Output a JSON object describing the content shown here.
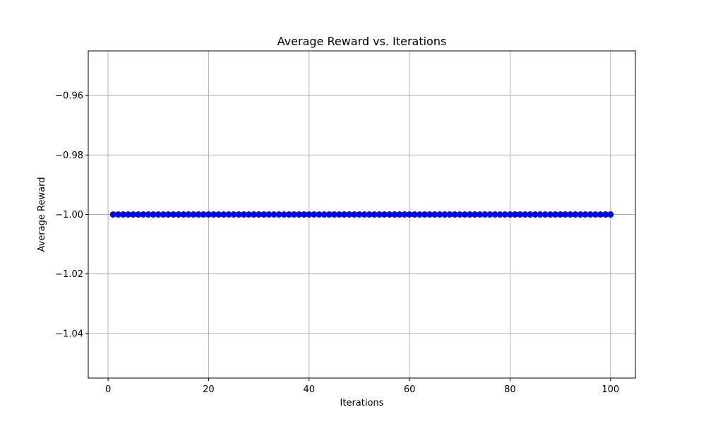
{
  "chart_data": {
    "type": "line",
    "title": "Average Reward vs. Iterations",
    "xlabel": "Iterations",
    "ylabel": "Average Reward",
    "xlim": [
      -3.95,
      104.95
    ],
    "ylim": [
      -1.055,
      -0.945
    ],
    "x_ticks": [
      0,
      20,
      40,
      60,
      80,
      100
    ],
    "x_tick_labels": [
      "0",
      "20",
      "40",
      "60",
      "80",
      "100"
    ],
    "y_ticks": [
      -1.04,
      -1.02,
      -1.0,
      -0.98,
      -0.96
    ],
    "y_tick_labels": [
      "−1.04",
      "−1.02",
      "−1.00",
      "−0.98",
      "−0.96"
    ],
    "grid": true,
    "marker": "circle",
    "series": [
      {
        "color": "#0000ff",
        "x": [
          1,
          2,
          3,
          4,
          5,
          6,
          7,
          8,
          9,
          10,
          11,
          12,
          13,
          14,
          15,
          16,
          17,
          18,
          19,
          20,
          21,
          22,
          23,
          24,
          25,
          26,
          27,
          28,
          29,
          30,
          31,
          32,
          33,
          34,
          35,
          36,
          37,
          38,
          39,
          40,
          41,
          42,
          43,
          44,
          45,
          46,
          47,
          48,
          49,
          50,
          51,
          52,
          53,
          54,
          55,
          56,
          57,
          58,
          59,
          60,
          61,
          62,
          63,
          64,
          65,
          66,
          67,
          68,
          69,
          70,
          71,
          72,
          73,
          74,
          75,
          76,
          77,
          78,
          79,
          80,
          81,
          82,
          83,
          84,
          85,
          86,
          87,
          88,
          89,
          90,
          91,
          92,
          93,
          94,
          95,
          96,
          97,
          98,
          99,
          100
        ],
        "y": [
          -1,
          -1,
          -1,
          -1,
          -1,
          -1,
          -1,
          -1,
          -1,
          -1,
          -1,
          -1,
          -1,
          -1,
          -1,
          -1,
          -1,
          -1,
          -1,
          -1,
          -1,
          -1,
          -1,
          -1,
          -1,
          -1,
          -1,
          -1,
          -1,
          -1,
          -1,
          -1,
          -1,
          -1,
          -1,
          -1,
          -1,
          -1,
          -1,
          -1,
          -1,
          -1,
          -1,
          -1,
          -1,
          -1,
          -1,
          -1,
          -1,
          -1,
          -1,
          -1,
          -1,
          -1,
          -1,
          -1,
          -1,
          -1,
          -1,
          -1,
          -1,
          -1,
          -1,
          -1,
          -1,
          -1,
          -1,
          -1,
          -1,
          -1,
          -1,
          -1,
          -1,
          -1,
          -1,
          -1,
          -1,
          -1,
          -1,
          -1,
          -1,
          -1,
          -1,
          -1,
          -1,
          -1,
          -1,
          -1,
          -1,
          -1,
          -1,
          -1,
          -1,
          -1,
          -1,
          -1,
          -1,
          -1,
          -1,
          -1
        ]
      }
    ]
  }
}
